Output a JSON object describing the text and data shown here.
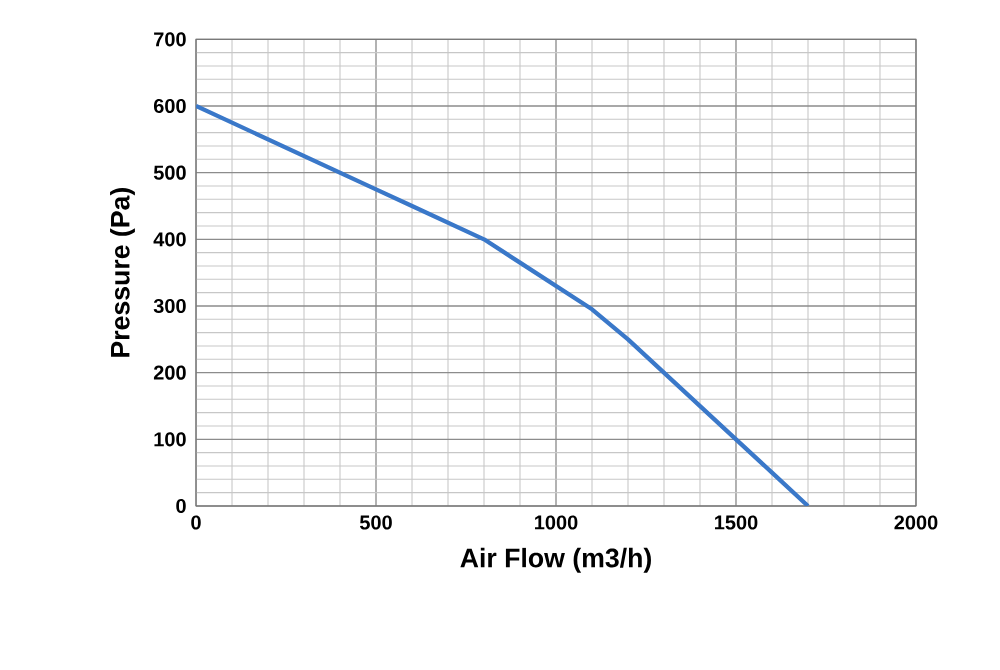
{
  "chart_data": {
    "type": "line",
    "xlabel": "Air Flow (m3/h)",
    "ylabel": "Pressure (Pa)",
    "x": [
      0,
      200,
      400,
      500,
      600,
      800,
      900,
      1000,
      1100,
      1200,
      1300,
      1400,
      1500,
      1600,
      1700
    ],
    "series": [
      {
        "color": "#3a78c9",
        "values": [
          600,
          550,
          500,
          475,
          450,
          400,
          365,
          330,
          295,
          250,
          200,
          150,
          100,
          50,
          0
        ]
      }
    ],
    "xlim": [
      0,
      2000
    ],
    "ylim": [
      0,
      700
    ],
    "xticks": [
      0,
      500,
      1000,
      1500,
      2000
    ],
    "yticks": [
      0,
      100,
      200,
      300,
      400,
      500,
      600,
      700
    ],
    "grid": true,
    "marker": "none",
    "line_style": "solid"
  }
}
